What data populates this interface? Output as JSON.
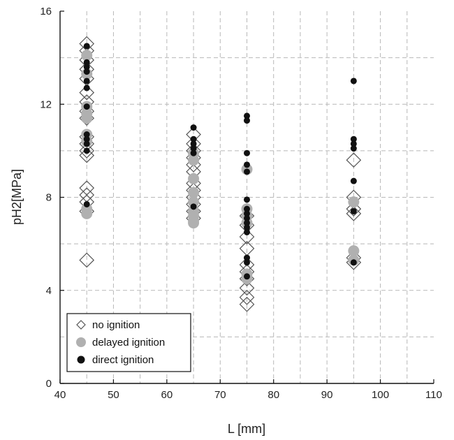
{
  "chart_data": {
    "type": "scatter",
    "title": "",
    "xlabel": "L [mm]",
    "ylabel": "pH2[MPa]",
    "xlim": [
      40,
      110
    ],
    "ylim": [
      0,
      16
    ],
    "xticks": [
      40,
      50,
      60,
      70,
      80,
      90,
      100,
      110
    ],
    "yticks": [
      0,
      4,
      8,
      12,
      16
    ],
    "grid": true,
    "legend_position": "bottom-left",
    "series": [
      {
        "name": "no ignition",
        "marker": "open-diamond",
        "color": "#555555",
        "points": [
          {
            "x": 45,
            "y": 14.6
          },
          {
            "x": 45,
            "y": 14.3
          },
          {
            "x": 45,
            "y": 13.9
          },
          {
            "x": 45,
            "y": 13.5
          },
          {
            "x": 45,
            "y": 13.1
          },
          {
            "x": 45,
            "y": 12.5
          },
          {
            "x": 45,
            "y": 12.1
          },
          {
            "x": 45,
            "y": 11.7
          },
          {
            "x": 45,
            "y": 11.4
          },
          {
            "x": 45,
            "y": 10.6
          },
          {
            "x": 45,
            "y": 10.3
          },
          {
            "x": 45,
            "y": 10.0
          },
          {
            "x": 45,
            "y": 9.8
          },
          {
            "x": 45,
            "y": 8.4
          },
          {
            "x": 45,
            "y": 8.1
          },
          {
            "x": 45,
            "y": 7.8
          },
          {
            "x": 45,
            "y": 7.4
          },
          {
            "x": 45,
            "y": 5.3
          },
          {
            "x": 65,
            "y": 10.7
          },
          {
            "x": 65,
            "y": 10.3
          },
          {
            "x": 65,
            "y": 10.0
          },
          {
            "x": 65,
            "y": 9.7
          },
          {
            "x": 65,
            "y": 9.4
          },
          {
            "x": 65,
            "y": 9.1
          },
          {
            "x": 65,
            "y": 8.6
          },
          {
            "x": 65,
            "y": 8.3
          },
          {
            "x": 65,
            "y": 8.0
          },
          {
            "x": 65,
            "y": 7.7
          },
          {
            "x": 65,
            "y": 7.4
          },
          {
            "x": 65,
            "y": 7.1
          },
          {
            "x": 75,
            "y": 7.2
          },
          {
            "x": 75,
            "y": 6.8
          },
          {
            "x": 75,
            "y": 6.3
          },
          {
            "x": 75,
            "y": 5.8
          },
          {
            "x": 75,
            "y": 5.1
          },
          {
            "x": 75,
            "y": 4.8
          },
          {
            "x": 75,
            "y": 4.5
          },
          {
            "x": 75,
            "y": 4.1
          },
          {
            "x": 75,
            "y": 3.7
          },
          {
            "x": 75,
            "y": 3.4
          },
          {
            "x": 95,
            "y": 9.6
          },
          {
            "x": 95,
            "y": 8.0
          },
          {
            "x": 95,
            "y": 7.5
          },
          {
            "x": 95,
            "y": 7.3
          },
          {
            "x": 95,
            "y": 5.4
          },
          {
            "x": 95,
            "y": 5.2
          }
        ]
      },
      {
        "name": "delayed ignition",
        "marker": "filled-circle-large",
        "color": "#b0b0b0",
        "points": [
          {
            "x": 45,
            "y": 14.1
          },
          {
            "x": 45,
            "y": 13.3
          },
          {
            "x": 45,
            "y": 11.9
          },
          {
            "x": 45,
            "y": 11.6
          },
          {
            "x": 45,
            "y": 11.4
          },
          {
            "x": 45,
            "y": 10.7
          },
          {
            "x": 45,
            "y": 10.4
          },
          {
            "x": 45,
            "y": 7.5
          },
          {
            "x": 45,
            "y": 7.3
          },
          {
            "x": 65,
            "y": 9.9
          },
          {
            "x": 65,
            "y": 9.6
          },
          {
            "x": 65,
            "y": 8.8
          },
          {
            "x": 65,
            "y": 8.2
          },
          {
            "x": 65,
            "y": 7.8
          },
          {
            "x": 65,
            "y": 7.4
          },
          {
            "x": 65,
            "y": 7.2
          },
          {
            "x": 65,
            "y": 7.0
          },
          {
            "x": 65,
            "y": 6.9
          },
          {
            "x": 75,
            "y": 9.2
          },
          {
            "x": 75,
            "y": 7.5
          },
          {
            "x": 75,
            "y": 7.2
          },
          {
            "x": 75,
            "y": 6.9
          },
          {
            "x": 75,
            "y": 4.7
          },
          {
            "x": 75,
            "y": 4.5
          },
          {
            "x": 95,
            "y": 7.8
          },
          {
            "x": 95,
            "y": 5.7
          },
          {
            "x": 95,
            "y": 5.3
          }
        ]
      },
      {
        "name": "direct ignition",
        "marker": "filled-circle-small",
        "color": "#111111",
        "points": [
          {
            "x": 45,
            "y": 14.5
          },
          {
            "x": 45,
            "y": 13.8
          },
          {
            "x": 45,
            "y": 13.6
          },
          {
            "x": 45,
            "y": 13.4
          },
          {
            "x": 45,
            "y": 13.0
          },
          {
            "x": 45,
            "y": 12.7
          },
          {
            "x": 45,
            "y": 11.9
          },
          {
            "x": 45,
            "y": 10.7
          },
          {
            "x": 45,
            "y": 10.5
          },
          {
            "x": 45,
            "y": 10.3
          },
          {
            "x": 45,
            "y": 10.0
          },
          {
            "x": 45,
            "y": 7.7
          },
          {
            "x": 65,
            "y": 11.0
          },
          {
            "x": 65,
            "y": 10.5
          },
          {
            "x": 65,
            "y": 10.3
          },
          {
            "x": 65,
            "y": 10.1
          },
          {
            "x": 65,
            "y": 9.9
          },
          {
            "x": 65,
            "y": 7.6
          },
          {
            "x": 75,
            "y": 11.5
          },
          {
            "x": 75,
            "y": 11.3
          },
          {
            "x": 75,
            "y": 9.9
          },
          {
            "x": 75,
            "y": 9.4
          },
          {
            "x": 75,
            "y": 9.1
          },
          {
            "x": 75,
            "y": 7.9
          },
          {
            "x": 75,
            "y": 7.5
          },
          {
            "x": 75,
            "y": 7.3
          },
          {
            "x": 75,
            "y": 7.1
          },
          {
            "x": 75,
            "y": 6.9
          },
          {
            "x": 75,
            "y": 6.7
          },
          {
            "x": 75,
            "y": 6.5
          },
          {
            "x": 75,
            "y": 5.4
          },
          {
            "x": 75,
            "y": 5.2
          },
          {
            "x": 75,
            "y": 4.6
          },
          {
            "x": 95,
            "y": 13.0
          },
          {
            "x": 95,
            "y": 10.5
          },
          {
            "x": 95,
            "y": 10.3
          },
          {
            "x": 95,
            "y": 10.1
          },
          {
            "x": 95,
            "y": 8.7
          },
          {
            "x": 95,
            "y": 7.4
          },
          {
            "x": 95,
            "y": 5.2
          }
        ]
      }
    ]
  }
}
